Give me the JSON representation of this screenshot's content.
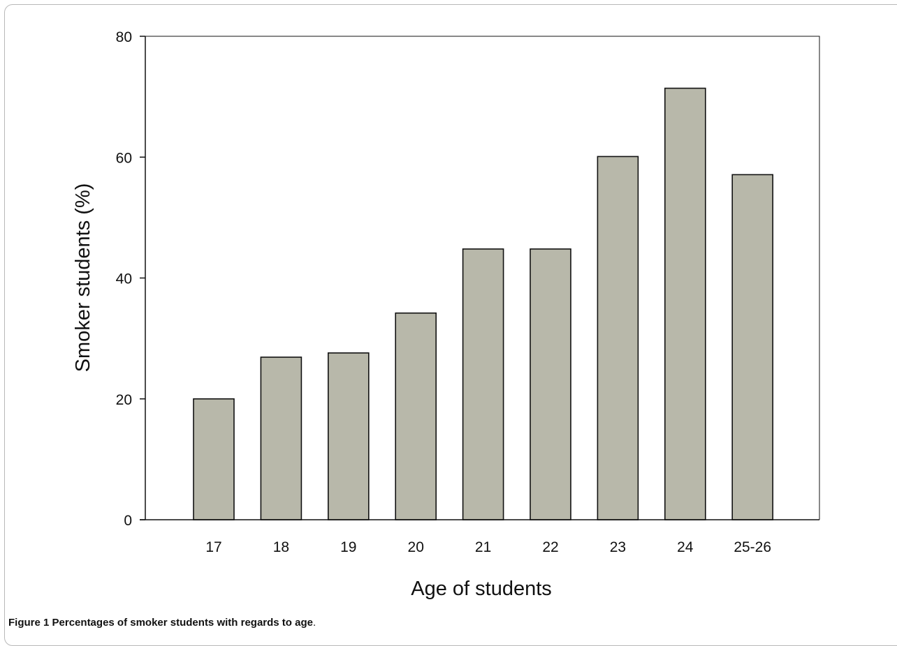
{
  "caption": {
    "label": "Figure 1",
    "text": "Percentages of smoker students with regards to age",
    "end": "."
  },
  "colors": {
    "bar_fill": "#b8b8aa",
    "bar_stroke": "#111111",
    "axis": "#111111"
  },
  "chart_data": {
    "type": "bar",
    "categories": [
      "17",
      "18",
      "19",
      "20",
      "21",
      "22",
      "23",
      "24",
      "25-26"
    ],
    "values": [
      20,
      26.9,
      27.6,
      34.2,
      44.8,
      44.8,
      60.1,
      71.4,
      57.1
    ],
    "title": "",
    "xlabel": "Age of students",
    "ylabel": "Smoker students (%)",
    "ylim": [
      0,
      80
    ],
    "yticks": [
      0,
      20,
      40,
      60,
      80
    ],
    "grid": false,
    "legend": "none"
  }
}
